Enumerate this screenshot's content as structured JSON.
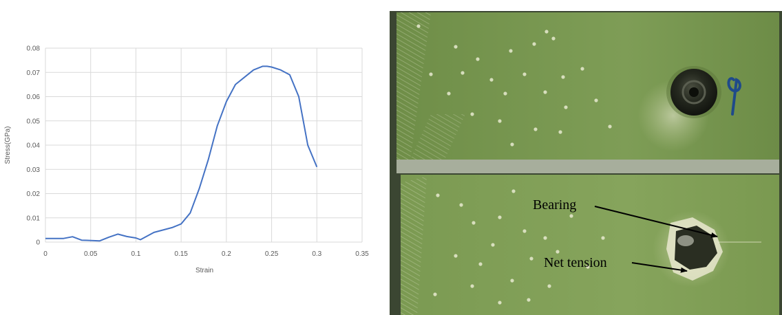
{
  "chart_data": {
    "type": "line",
    "xlabel": "Strain",
    "ylabel": "Stress(GPa)",
    "xlim": [
      0,
      0.35
    ],
    "ylim": [
      0,
      0.08
    ],
    "x_ticks": [
      "0",
      "0.05",
      "0.1",
      "0.15",
      "0.2",
      "0.25",
      "0.3",
      "0.35"
    ],
    "y_ticks": [
      "0",
      "0.01",
      "0.02",
      "0.03",
      "0.04",
      "0.05",
      "0.06",
      "0.07",
      "0.08"
    ],
    "grid": true,
    "line_color": "#4472c4",
    "series": [
      {
        "x": [
          0,
          0.02,
          0.03,
          0.04,
          0.06,
          0.07,
          0.08,
          0.09,
          0.1,
          0.105,
          0.12,
          0.13,
          0.14,
          0.15,
          0.16,
          0.17,
          0.18,
          0.19,
          0.2,
          0.21,
          0.22,
          0.23,
          0.24,
          0.245,
          0.25,
          0.26,
          0.27,
          0.28,
          0.285,
          0.29,
          0.3
        ],
        "y": [
          0.0015,
          0.0015,
          0.0022,
          0.0008,
          0.0005,
          0.002,
          0.0033,
          0.0023,
          0.0017,
          0.001,
          0.004,
          0.005,
          0.006,
          0.0075,
          0.012,
          0.022,
          0.034,
          0.048,
          0.058,
          0.065,
          0.068,
          0.071,
          0.0725,
          0.0725,
          0.0722,
          0.071,
          0.069,
          0.06,
          0.05,
          0.04,
          0.031
        ]
      }
    ]
  },
  "photo": {
    "annotations": [
      {
        "label": "Bearing"
      },
      {
        "label": "Net tension"
      }
    ],
    "colors": {
      "specimen": "#7a9a52",
      "specimen_dark": "#55703a",
      "background": "#3a4a30",
      "fibers": "#e8ead0",
      "bolt": "#1e2218",
      "ink": "#1f4a8a"
    }
  }
}
